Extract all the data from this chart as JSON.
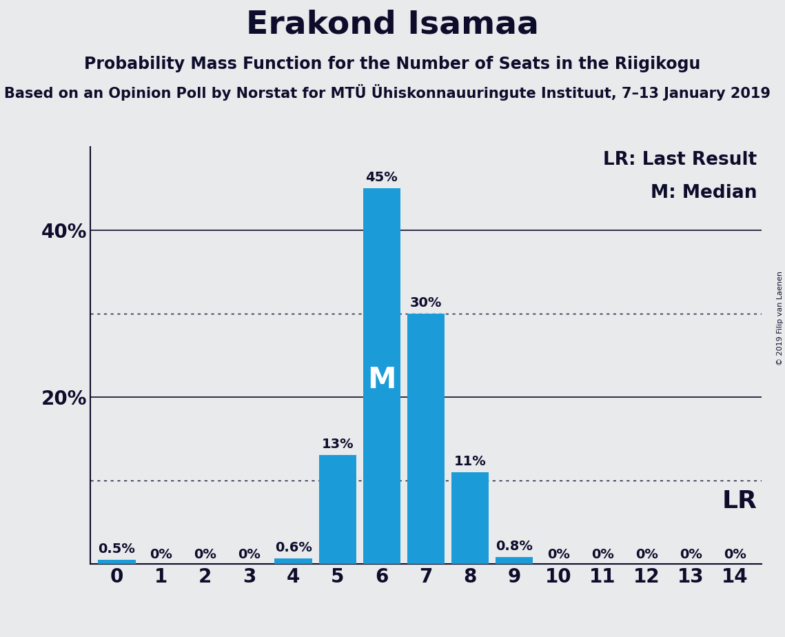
{
  "title": "Erakond Isamaa",
  "subtitle": "Probability Mass Function for the Number of Seats in the Riigikogu",
  "subsubtitle": "Based on an Opinion Poll by Norstat for MTÜ Ühiskonnauuringute Instituut, 7–13 January 2019",
  "copyright": "© 2019 Filip van Laenen",
  "categories": [
    0,
    1,
    2,
    3,
    4,
    5,
    6,
    7,
    8,
    9,
    10,
    11,
    12,
    13,
    14
  ],
  "values": [
    0.5,
    0,
    0,
    0,
    0.6,
    13,
    45,
    30,
    11,
    0.8,
    0,
    0,
    0,
    0,
    0
  ],
  "bar_color": "#1b9cd8",
  "background_color": "#e8eaec",
  "text_color": "#0d0d2b",
  "median_seat": 6,
  "lr_label": "LR",
  "legend_lr": "LR: Last Result",
  "legend_m": "M: Median",
  "ylim": [
    0,
    50
  ],
  "yticks": [
    0,
    20,
    40
  ],
  "ytick_labels": [
    "",
    "20%",
    "40%"
  ],
  "solid_lines": [
    20,
    40
  ],
  "dotted_lines": [
    10,
    30
  ],
  "bar_label_fontsize": 14,
  "title_fontsize": 34,
  "subtitle_fontsize": 17,
  "subsubtitle_fontsize": 15,
  "axis_tick_fontsize": 20,
  "median_label_fontsize": 30,
  "legend_fontsize": 19,
  "lr_label_fontsize": 26,
  "copyright_fontsize": 8
}
